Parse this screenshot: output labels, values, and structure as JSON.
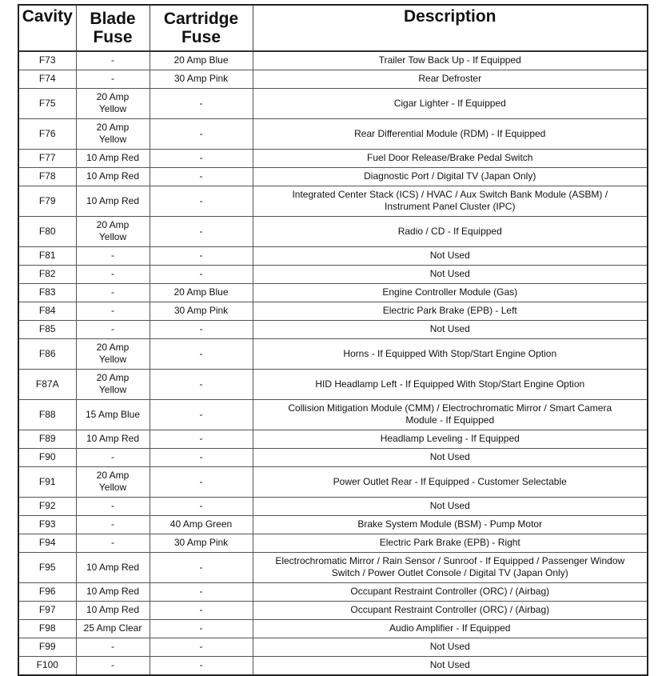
{
  "headers": {
    "cavity": "Cavity",
    "blade": "Blade\nFuse",
    "cartridge": "Cartridge\nFuse",
    "description": "Description"
  },
  "rows": [
    {
      "cavity": "F73",
      "blade": "-",
      "cartridge": "20 Amp Blue",
      "description": "Trailer Tow Back Up - If Equipped"
    },
    {
      "cavity": "F74",
      "blade": "-",
      "cartridge": "30 Amp Pink",
      "description": "Rear Defroster"
    },
    {
      "cavity": "F75",
      "blade": "20 Amp\nYellow",
      "cartridge": "-",
      "description": "Cigar Lighter - If Equipped"
    },
    {
      "cavity": "F76",
      "blade": "20 Amp\nYellow",
      "cartridge": "-",
      "description": "Rear Differential Module (RDM) - If Equipped"
    },
    {
      "cavity": "F77",
      "blade": "10 Amp Red",
      "cartridge": "-",
      "description": "Fuel Door Release/Brake Pedal Switch"
    },
    {
      "cavity": "F78",
      "blade": "10 Amp Red",
      "cartridge": "-",
      "description": "Diagnostic Port / Digital TV (Japan Only)"
    },
    {
      "cavity": "F79",
      "blade": "10 Amp Red",
      "cartridge": "-",
      "description": "Integrated Center Stack (ICS) / HVAC / Aux Switch Bank Module (ASBM) /\nInstrument Panel Cluster (IPC)"
    },
    {
      "cavity": "F80",
      "blade": "20 Amp\nYellow",
      "cartridge": "-",
      "description": "Radio / CD - If Equipped"
    },
    {
      "cavity": "F81",
      "blade": "-",
      "cartridge": "-",
      "description": "Not Used"
    },
    {
      "cavity": "F82",
      "blade": "-",
      "cartridge": "-",
      "description": "Not Used"
    },
    {
      "cavity": "F83",
      "blade": "-",
      "cartridge": "20 Amp Blue",
      "description": "Engine Controller Module (Gas)"
    },
    {
      "cavity": "F84",
      "blade": "-",
      "cartridge": "30 Amp Pink",
      "description": "Electric Park Brake (EPB) - Left"
    },
    {
      "cavity": "F85",
      "blade": "-",
      "cartridge": "-",
      "description": "Not Used"
    },
    {
      "cavity": "F86",
      "blade": "20 Amp\nYellow",
      "cartridge": "-",
      "description": "Horns - If Equipped With Stop/Start Engine Option"
    },
    {
      "cavity": "F87A",
      "blade": "20 Amp\nYellow",
      "cartridge": "-",
      "description": "HID Headlamp Left - If Equipped With Stop/Start Engine Option"
    },
    {
      "cavity": "F88",
      "blade": "15 Amp Blue",
      "cartridge": "-",
      "description": "Collision Mitigation Module (CMM) / Electrochromatic Mirror / Smart Camera\nModule - If Equipped"
    },
    {
      "cavity": "F89",
      "blade": "10 Amp Red",
      "cartridge": "-",
      "description": "Headlamp Leveling - If Equipped"
    },
    {
      "cavity": "F90",
      "blade": "-",
      "cartridge": "-",
      "description": "Not Used"
    },
    {
      "cavity": "F91",
      "blade": "20 Amp\nYellow",
      "cartridge": "-",
      "description": "Power Outlet Rear - If Equipped - Customer Selectable"
    },
    {
      "cavity": "F92",
      "blade": "-",
      "cartridge": "-",
      "description": "Not Used"
    },
    {
      "cavity": "F93",
      "blade": "-",
      "cartridge": "40 Amp Green",
      "description": "Brake System Module (BSM) - Pump Motor"
    },
    {
      "cavity": "F94",
      "blade": "-",
      "cartridge": "30 Amp Pink",
      "description": "Electric Park Brake (EPB) - Right"
    },
    {
      "cavity": "F95",
      "blade": "10 Amp Red",
      "cartridge": "-",
      "description": "Electrochromatic Mirror / Rain Sensor / Sunroof - If Equipped / Passenger Window\nSwitch / Power Outlet Console / Digital TV (Japan Only)"
    },
    {
      "cavity": "F96",
      "blade": "10 Amp Red",
      "cartridge": "-",
      "description": "Occupant Restraint Controller (ORC) / (Airbag)"
    },
    {
      "cavity": "F97",
      "blade": "10 Amp Red",
      "cartridge": "-",
      "description": "Occupant Restraint Controller (ORC) / (Airbag)"
    },
    {
      "cavity": "F98",
      "blade": "25 Amp Clear",
      "cartridge": "-",
      "description": "Audio Amplifier - If Equipped"
    },
    {
      "cavity": "F99",
      "blade": "-",
      "cartridge": "-",
      "description": "Not Used"
    },
    {
      "cavity": "F100",
      "blade": "-",
      "cartridge": "-",
      "description": "Not Used"
    }
  ]
}
